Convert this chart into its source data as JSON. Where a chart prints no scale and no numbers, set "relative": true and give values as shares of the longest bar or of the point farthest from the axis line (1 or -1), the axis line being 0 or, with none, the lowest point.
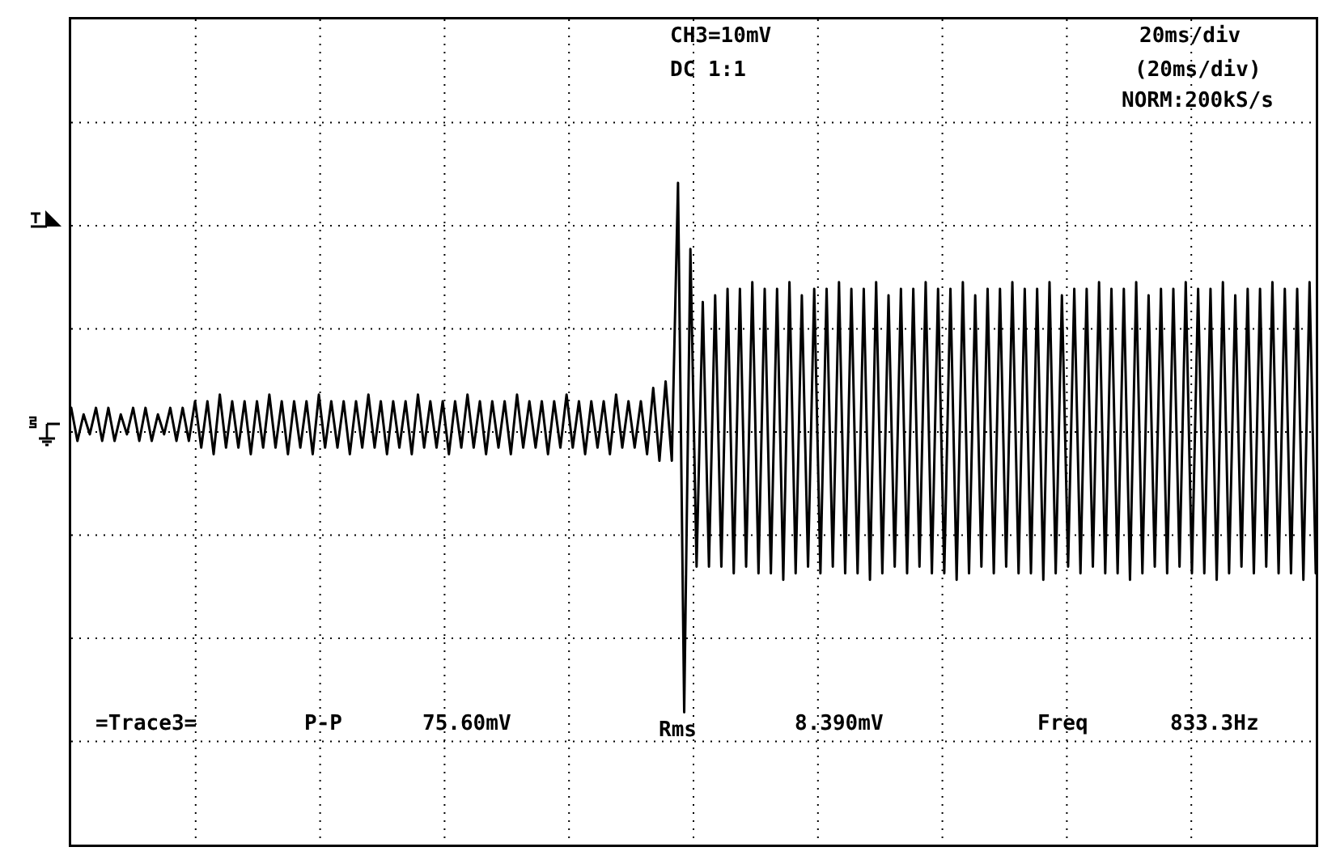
{
  "chart_data": {
    "type": "line",
    "relative": true,
    "categories": [
      null,
      null,
      null,
      null,
      null,
      null,
      null,
      null,
      null,
      null,
      null,
      null,
      null,
      null,
      null,
      null,
      null,
      null,
      null,
      null,
      null,
      null,
      null,
      null,
      null,
      null,
      null,
      null,
      null,
      null,
      null,
      null,
      null,
      null,
      null,
      null,
      null,
      null,
      null,
      null,
      null,
      null,
      null,
      null,
      null,
      null,
      null,
      null,
      null,
      null,
      null,
      null,
      null,
      null,
      null,
      null,
      null,
      null,
      null,
      null,
      null,
      null,
      null,
      null,
      null,
      null,
      null,
      null,
      null,
      null,
      null,
      null,
      null,
      null,
      null,
      null,
      null,
      null,
      null,
      null,
      null,
      null,
      null,
      null,
      null,
      null,
      null,
      null,
      null,
      null,
      null,
      null,
      null,
      null,
      null,
      null,
      null,
      null,
      null,
      null,
      null,
      null,
      null,
      null,
      null,
      null,
      null,
      null,
      null,
      null,
      null,
      null,
      null,
      null,
      null,
      null,
      null,
      null,
      null,
      null,
      null,
      null,
      null,
      null,
      null,
      null,
      null,
      null,
      null,
      null,
      null,
      null,
      null,
      null,
      null,
      null,
      null,
      null,
      null,
      null,
      null,
      null,
      null,
      null,
      null,
      null,
      null,
      null,
      null,
      null,
      null,
      null,
      null,
      null,
      null,
      null,
      null,
      null,
      null,
      null,
      null,
      null,
      null,
      null,
      null,
      null,
      null,
      null,
      null,
      null,
      null,
      null,
      null,
      null,
      null,
      null,
      null,
      null,
      null,
      null,
      null,
      null,
      null,
      null,
      null,
      null,
      null,
      null,
      null,
      null,
      null,
      null,
      null,
      null,
      null,
      null,
      null,
      null,
      null,
      null,
      null,
      null
    ],
    "series": [
      {
        "color": "#000000",
        "values": [
          0.66,
          0.61,
          0.65,
          0.62,
          0.66,
          0.61,
          0.66,
          0.61,
          0.65,
          0.62,
          0.66,
          0.61,
          0.66,
          0.61,
          0.65,
          0.62,
          0.66,
          0.61,
          0.66,
          0.61,
          0.67,
          0.6,
          0.67,
          0.59,
          0.68,
          0.6,
          0.67,
          0.6,
          0.67,
          0.59,
          0.67,
          0.6,
          0.68,
          0.6,
          0.67,
          0.59,
          0.67,
          0.6,
          0.67,
          0.59,
          0.68,
          0.6,
          0.67,
          0.6,
          0.67,
          0.59,
          0.67,
          0.6,
          0.68,
          0.6,
          0.67,
          0.59,
          0.67,
          0.6,
          0.67,
          0.59,
          0.68,
          0.6,
          0.67,
          0.6,
          0.67,
          0.59,
          0.67,
          0.6,
          0.68,
          0.6,
          0.67,
          0.59,
          0.67,
          0.6,
          0.67,
          0.59,
          0.68,
          0.6,
          0.67,
          0.6,
          0.67,
          0.59,
          0.67,
          0.6,
          0.68,
          0.6,
          0.67,
          0.59,
          0.67,
          0.6,
          0.67,
          0.59,
          0.68,
          0.6,
          0.67,
          0.6,
          0.67,
          0.59,
          0.69,
          0.58,
          0.7,
          0.58,
          1.0,
          0.2,
          0.9,
          0.42,
          0.82,
          0.42,
          0.83,
          0.42,
          0.84,
          0.41,
          0.84,
          0.42,
          0.85,
          0.41,
          0.84,
          0.41,
          0.84,
          0.4,
          0.85,
          0.41,
          0.83,
          0.42,
          0.84,
          0.41,
          0.84,
          0.42,
          0.85,
          0.41,
          0.84,
          0.41,
          0.84,
          0.4,
          0.85,
          0.41,
          0.83,
          0.42,
          0.84,
          0.41,
          0.84,
          0.42,
          0.85,
          0.41,
          0.84,
          0.41,
          0.84,
          0.4,
          0.85,
          0.41,
          0.83,
          0.42,
          0.84,
          0.41,
          0.84,
          0.42,
          0.85,
          0.41,
          0.84,
          0.41,
          0.84,
          0.4,
          0.85,
          0.41,
          0.83,
          0.42,
          0.84,
          0.41,
          0.84,
          0.42,
          0.85,
          0.41,
          0.84,
          0.41,
          0.84,
          0.4,
          0.85,
          0.41,
          0.83,
          0.42,
          0.84,
          0.41,
          0.84,
          0.42,
          0.85,
          0.41,
          0.84,
          0.41,
          0.84,
          0.4,
          0.85,
          0.41,
          0.83,
          0.42,
          0.84,
          0.41,
          0.84,
          0.42,
          0.85,
          0.41,
          0.84,
          0.41,
          0.84,
          0.4,
          0.85,
          0.41
        ]
      }
    ],
    "annotations": [
      "CH3=10mV",
      "DC 1:1",
      "20ms/div",
      "(20ms/div)",
      "NORM:200kS/s",
      "=Trace3=",
      "P-P",
      "75.60mV",
      "Rms",
      "8.390mV",
      "Freq",
      "833.3Hz"
    ]
  }
}
